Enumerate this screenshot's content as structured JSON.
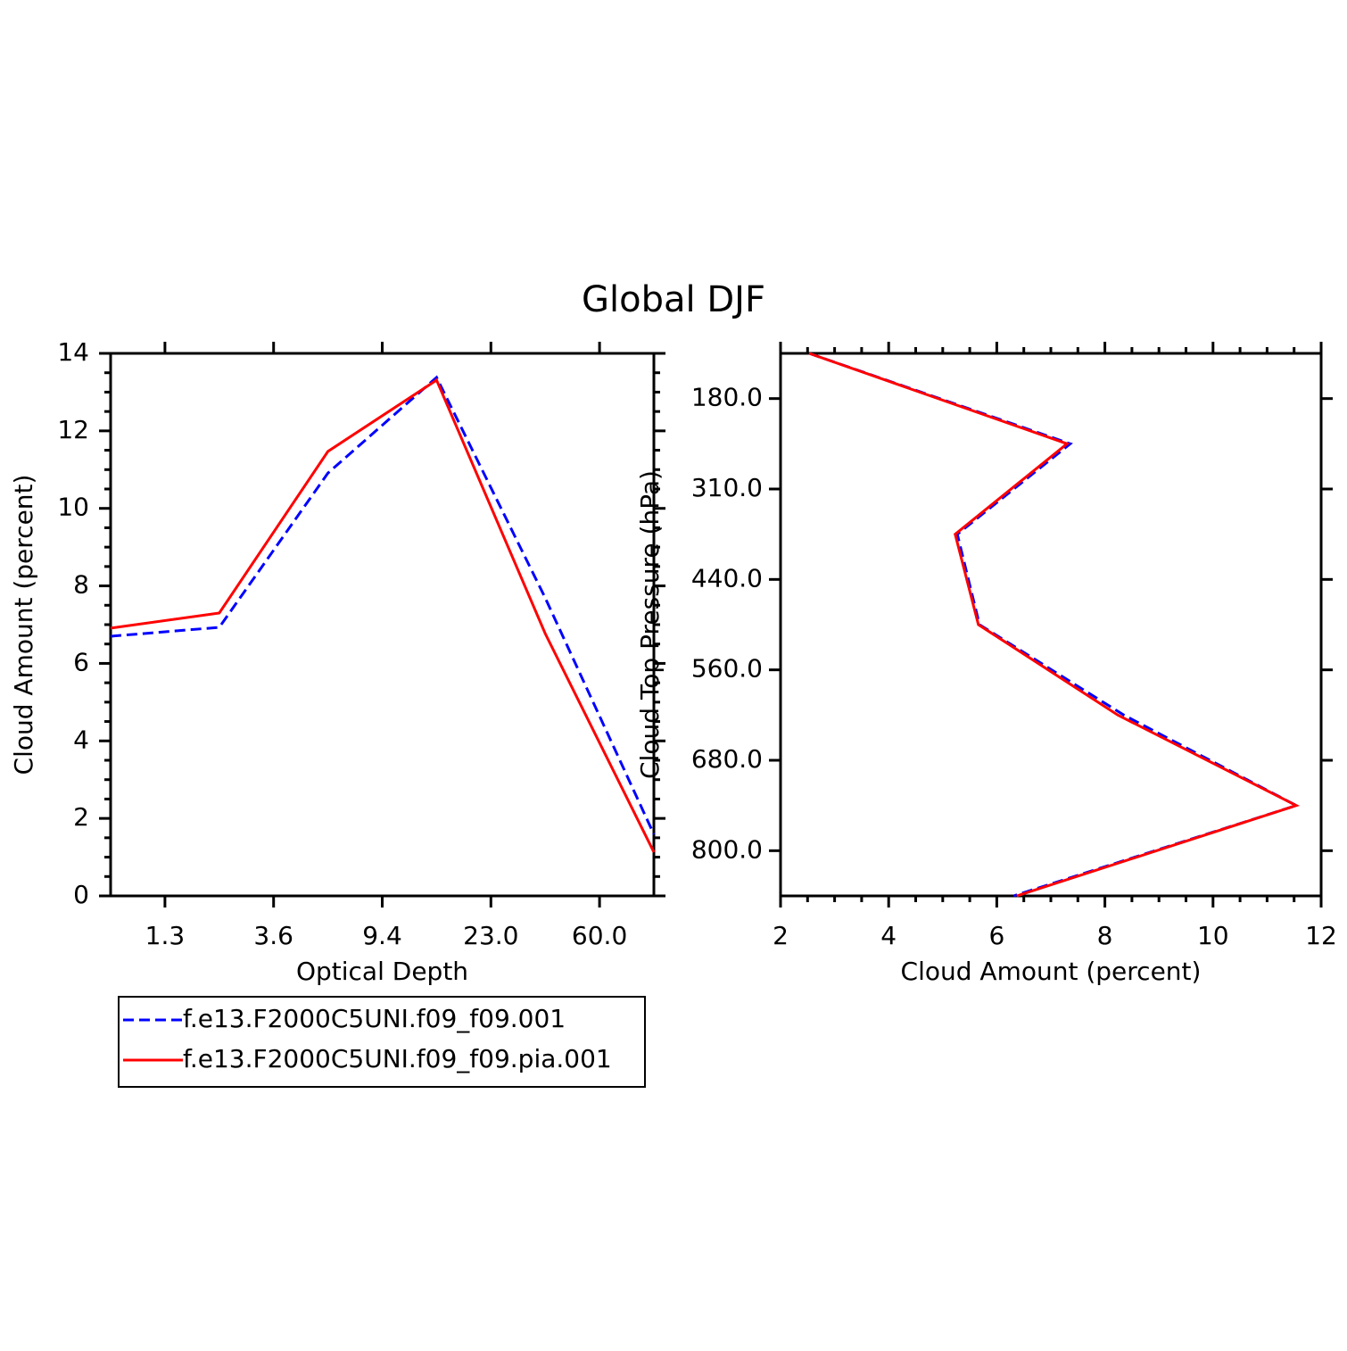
{
  "chart_data": [
    {
      "type": "line",
      "title": "Global DJF",
      "x_label": "Optical Depth",
      "y_label": "Cloud Amount (percent)",
      "x": [
        0,
        1,
        2,
        3,
        4,
        5
      ],
      "xlim": [
        0,
        5
      ],
      "xticks": [
        {
          "value": 0.5,
          "label": "1.3"
        },
        {
          "value": 1.5,
          "label": "3.6"
        },
        {
          "value": 2.5,
          "label": "9.4"
        },
        {
          "value": 3.5,
          "label": "23.0"
        },
        {
          "value": 4.5,
          "label": "60.0"
        }
      ],
      "ylim": [
        0,
        14
      ],
      "yticks": [
        0,
        2,
        4,
        6,
        8,
        10,
        12,
        14
      ],
      "series": [
        {
          "name": "f.e13.F2000C5UNI.f09_f09.001",
          "color": "#0000ff",
          "style": "dashed",
          "values": [
            6.7,
            6.93,
            10.91,
            13.38,
            7.69,
            1.59
          ]
        },
        {
          "name": "f.e13.F2000C5UNI.f09_f09.pia.001",
          "color": "#ff0000",
          "style": "solid",
          "values": [
            6.91,
            7.3,
            11.47,
            13.31,
            6.77,
            1.13
          ]
        }
      ],
      "legend": "below"
    },
    {
      "type": "line-horizontal",
      "x_label": "Cloud Amount (percent)",
      "y_label": "Cloud Top Pressure (hPa)",
      "y": [
        0,
        1,
        2,
        3,
        4,
        5,
        6
      ],
      "ylim": [
        0,
        6
      ],
      "y_reversed": true,
      "yticks": [
        {
          "value": 0.5,
          "label": "180.0"
        },
        {
          "value": 1.5,
          "label": "310.0"
        },
        {
          "value": 2.5,
          "label": "440.0"
        },
        {
          "value": 3.5,
          "label": "560.0"
        },
        {
          "value": 4.5,
          "label": "680.0"
        },
        {
          "value": 5.5,
          "label": "800.0"
        }
      ],
      "xlim": [
        2,
        12
      ],
      "xticks": [
        2,
        4,
        6,
        8,
        10,
        12
      ],
      "series": [
        {
          "color": "#0000ff",
          "style": "dashed",
          "values": [
            2.53,
            7.36,
            5.27,
            5.68,
            8.35,
            11.54,
            6.31
          ]
        },
        {
          "color": "#ff0000",
          "style": "solid",
          "values": [
            2.53,
            7.3,
            5.23,
            5.66,
            8.24,
            11.54,
            6.37
          ]
        }
      ]
    }
  ]
}
